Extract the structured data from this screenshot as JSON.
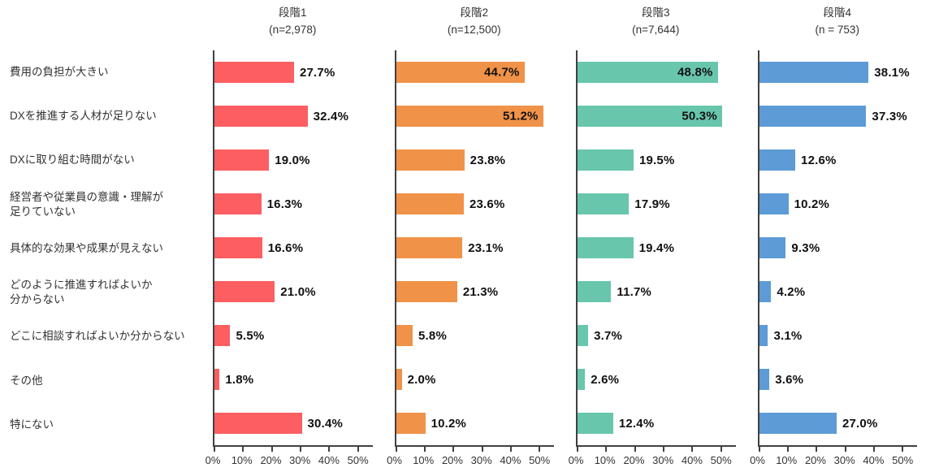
{
  "chart_data": {
    "type": "bar",
    "orientation": "horizontal",
    "title": "",
    "categories": [
      "費用の負担が大きい",
      "DXを推進する人材が足りない",
      "DXに取り組む時間がない",
      "経営者や従業員の意識・理解が\n足りていない",
      "具体的な効果や成果が見えない",
      "どのように推進すればよいか\n分からない",
      "どこに相談すればよいか分からない",
      "その他",
      "特にない"
    ],
    "x_axis": {
      "ticks": [
        "0%",
        "10%",
        "20%",
        "30%",
        "40%",
        "50%"
      ],
      "tick_values": [
        0,
        10,
        20,
        30,
        40,
        50
      ],
      "max": 55,
      "unit": "%"
    },
    "panels": [
      {
        "title": "段階1",
        "n_label": "(n=2,978)",
        "color": "#FC5E61",
        "values": [
          27.7,
          32.4,
          19.0,
          16.3,
          16.6,
          21.0,
          5.5,
          1.8,
          30.4
        ]
      },
      {
        "title": "段階2",
        "n_label": "(n=12,500)",
        "color": "#F09248",
        "values": [
          44.7,
          51.2,
          23.8,
          23.6,
          23.1,
          21.3,
          5.8,
          2.0,
          10.2
        ]
      },
      {
        "title": "段階3",
        "n_label": "(n=7,644)",
        "color": "#68C6AD",
        "values": [
          48.8,
          50.3,
          19.5,
          17.9,
          19.4,
          11.7,
          3.7,
          2.6,
          12.4
        ]
      },
      {
        "title": "段階4",
        "n_label": "(n = 753)",
        "color": "#5C9BD5",
        "values": [
          38.1,
          37.3,
          12.6,
          10.2,
          9.3,
          4.2,
          3.1,
          3.6,
          27.0
        ]
      }
    ],
    "legend": null,
    "grid": false,
    "value_label_format": "x.x%"
  }
}
